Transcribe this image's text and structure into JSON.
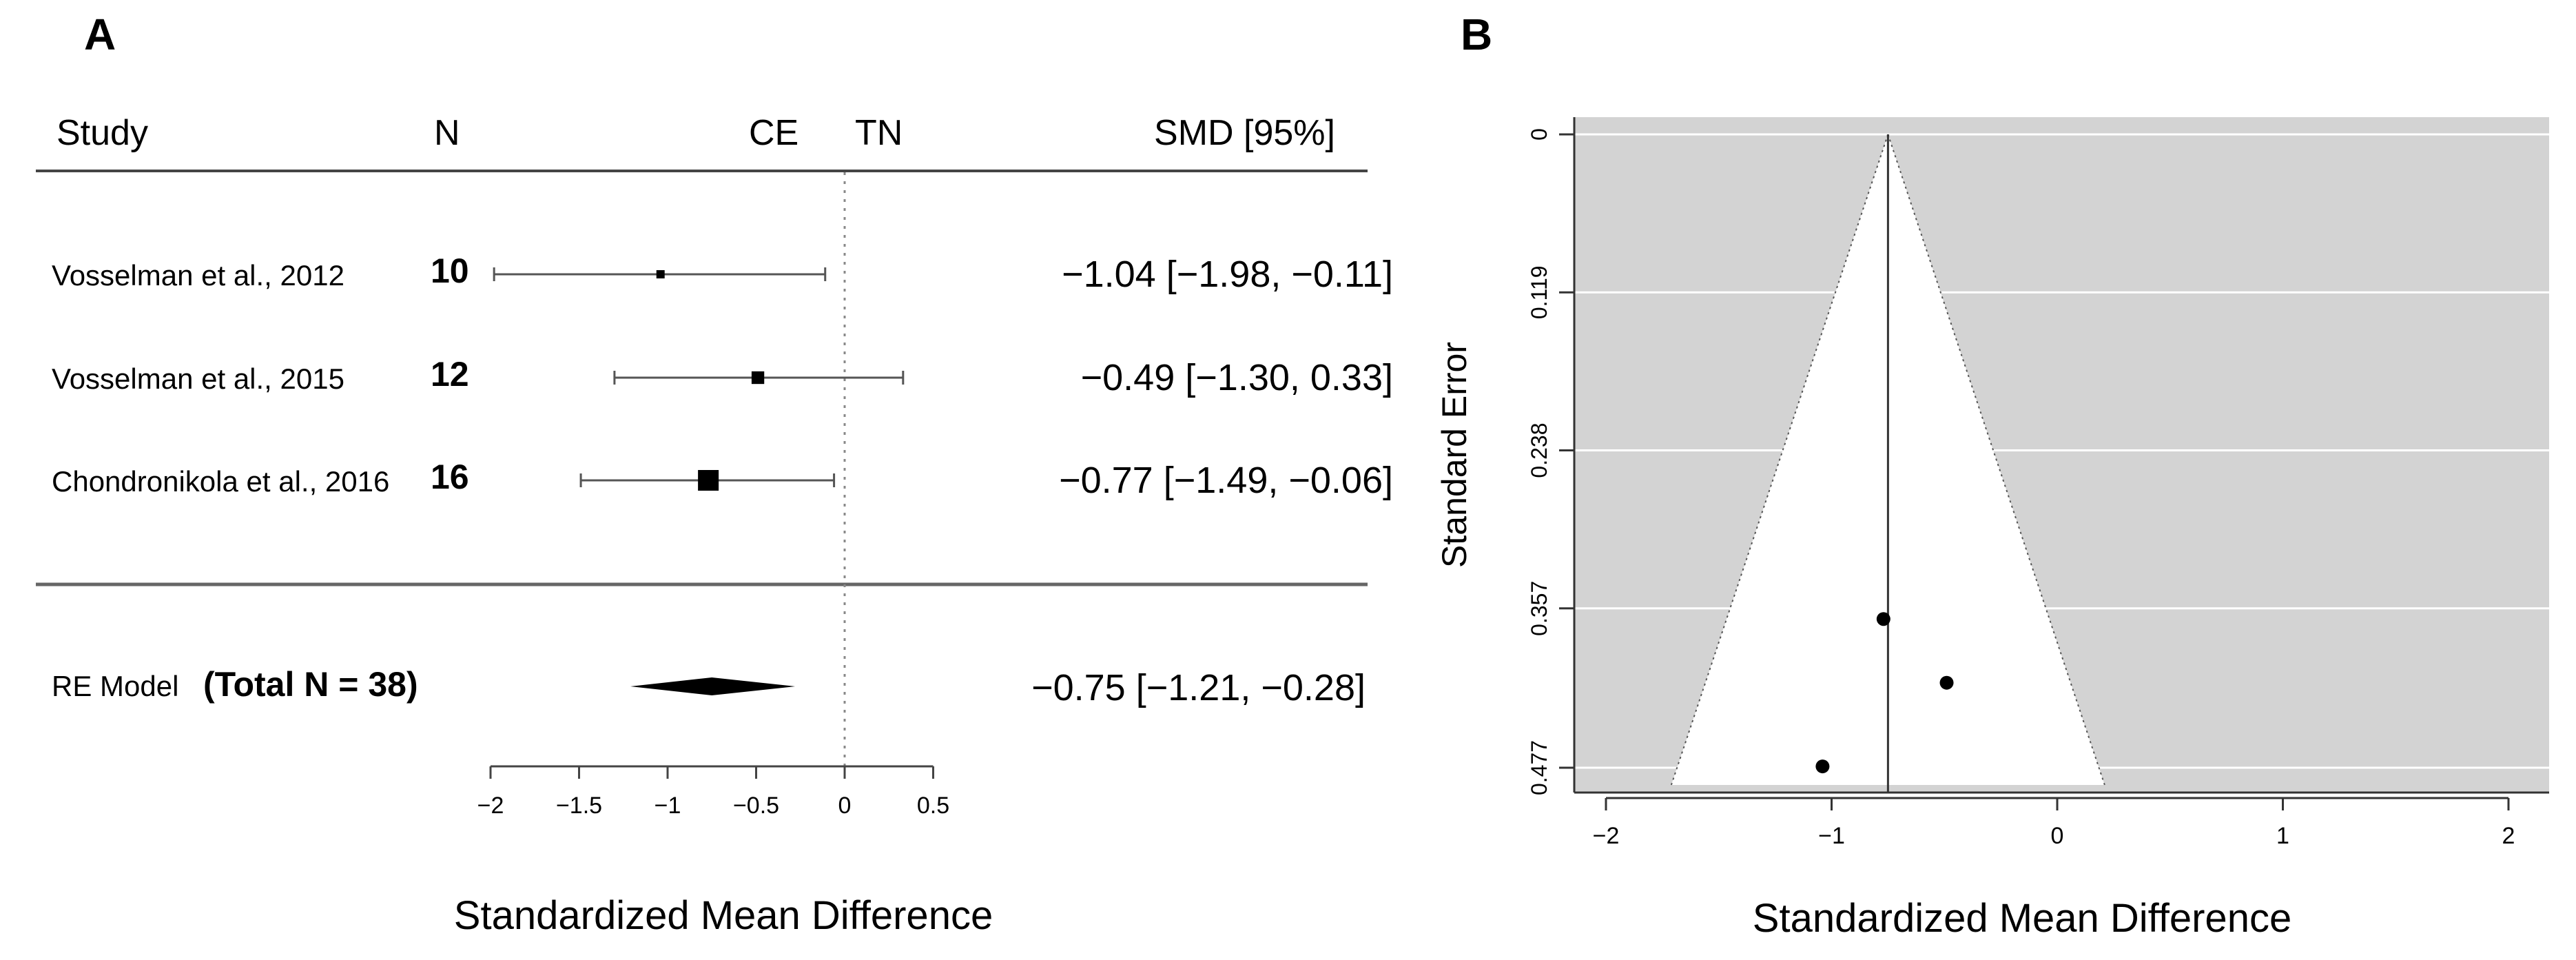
{
  "chart_data": [
    {
      "type": "forest",
      "panel_label": "A",
      "headers": {
        "study": "Study",
        "n": "N",
        "left_side": "CE",
        "right_side": "TN",
        "effect": "SMD [95%]"
      },
      "studies": [
        {
          "name": "Vosselman et al., 2012",
          "n": "10",
          "smd": -1.04,
          "ci_low": -1.98,
          "ci_high": -0.11,
          "weight": 0.18,
          "label": "−1.04 [−1.98, −0.11]"
        },
        {
          "name": "Vosselman et al., 2015",
          "n": "12",
          "smd": -0.49,
          "ci_low": -1.3,
          "ci_high": 0.33,
          "weight": 0.47,
          "label": "−0.49 [−1.30, 0.33]"
        },
        {
          "name": "Chondronikola et al., 2016",
          "n": "16",
          "smd": -0.77,
          "ci_low": -1.49,
          "ci_high": -0.06,
          "weight": 1.0,
          "label": "−0.77 [−1.49, −0.06]"
        }
      ],
      "summary": {
        "name": "RE Model",
        "total": "(Total N = 38)",
        "smd": -0.75,
        "ci_low": -1.21,
        "ci_high": -0.28,
        "label": "−0.75 [−1.21, −0.28]"
      },
      "x_ticks": [
        -2,
        -1.5,
        -1,
        -0.5,
        0,
        0.5
      ],
      "x_tick_labels": [
        "−2",
        "−1.5",
        "−1",
        "−0.5",
        "0",
        "0.5"
      ],
      "xlim": [
        -2,
        0.5
      ],
      "reference_line": 0,
      "xlabel": "Standardized Mean Difference"
    },
    {
      "type": "funnel",
      "panel_label": "B",
      "points": [
        {
          "x": -0.77,
          "y": 0.365
        },
        {
          "x": -0.49,
          "y": 0.413
        },
        {
          "x": -1.04,
          "y": 0.476
        }
      ],
      "center": -0.75,
      "x_ticks": [
        -2,
        -1,
        0,
        1,
        2
      ],
      "x_tick_labels": [
        "−2",
        "−1",
        "0",
        "1",
        "2"
      ],
      "xlim": [
        -2.05,
        2.05
      ],
      "y_ticks": [
        0,
        0.119,
        0.238,
        0.357,
        0.477
      ],
      "y_tick_labels": [
        "0",
        "0.119",
        "0.238",
        "0.357",
        "0.477"
      ],
      "ylim": [
        0,
        0.49
      ],
      "y_reversed": true,
      "xlabel": "Standardized Mean Difference",
      "ylabel": "Standard Error",
      "colors": {
        "background": "#d3d3d3",
        "funnel": "#ffffff",
        "grid": "#ffffff"
      }
    }
  ]
}
